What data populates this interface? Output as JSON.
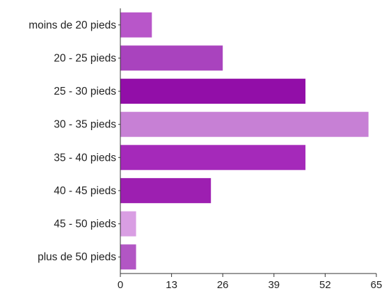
{
  "chart_data": {
    "type": "bar",
    "orientation": "horizontal",
    "title": "",
    "xlabel": "",
    "ylabel": "",
    "categories": [
      "moins de 20 pieds",
      "20 - 25 pieds",
      "25 - 30 pieds",
      "30 - 35 pieds",
      "35 - 40  pieds",
      "40 - 45 pieds",
      "45 - 50 pieds",
      "plus de 50 pieds"
    ],
    "values": [
      8,
      26,
      47,
      63,
      47,
      23,
      4,
      4
    ],
    "bar_colors": [
      "#b856c9",
      "#a943be",
      "#920ea8",
      "#c780d5",
      "#a529ba",
      "#9d1fb1",
      "#d99ee3",
      "#b256c4"
    ],
    "xlim": [
      0,
      65
    ],
    "xticks": [
      "0",
      "13",
      "26",
      "39",
      "52",
      "65"
    ],
    "xtick_values": [
      0,
      13,
      26,
      39,
      52,
      65
    ],
    "grid": false,
    "axis_color": "#333333"
  }
}
